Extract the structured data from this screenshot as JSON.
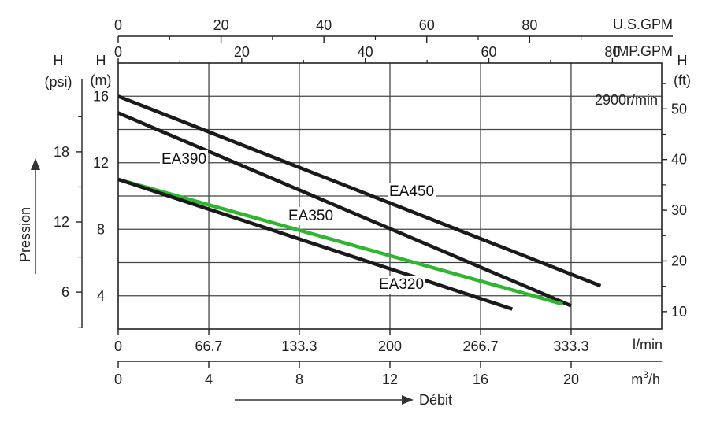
{
  "chart_data": {
    "type": "line",
    "title": "",
    "speed_label": "2900r/min",
    "x_axes": {
      "usgpm": {
        "label": "U.S.GPM",
        "ticks": [
          "0",
          "20",
          "40",
          "60",
          "80"
        ],
        "values": [
          0,
          20,
          40,
          60,
          80
        ]
      },
      "impgpm": {
        "label": "IMP.GPM",
        "ticks": [
          "0",
          "20",
          "40",
          "60",
          "80"
        ],
        "values": [
          0,
          20,
          40,
          60,
          80
        ]
      },
      "lmin": {
        "label": "l/min",
        "ticks": [
          "0",
          "66.7",
          "133.3",
          "200",
          "266.7",
          "333.3"
        ],
        "values": [
          0,
          66.7,
          133.3,
          200,
          266.7,
          333.3
        ],
        "range": [
          0,
          400
        ]
      },
      "m3h": {
        "label_base": "m",
        "label_sup": "3",
        "label_tail": "/h",
        "ticks": [
          "0",
          "4",
          "8",
          "12",
          "16",
          "20"
        ],
        "values": [
          0,
          4,
          8,
          12,
          16,
          20
        ]
      }
    },
    "y_axes": {
      "psi": {
        "label1": "H",
        "label2": "(psi)",
        "ticks": [
          "6",
          "12",
          "18"
        ],
        "values": [
          6,
          12,
          18
        ]
      },
      "m": {
        "label1": "H",
        "label2": "(m)",
        "ticks": [
          "4",
          "8",
          "12",
          "16"
        ],
        "values": [
          4,
          8,
          12,
          16
        ],
        "range": [
          2,
          18
        ]
      },
      "ft": {
        "label1": "H",
        "label2": "(ft)",
        "ticks": [
          "10",
          "20",
          "30",
          "40",
          "50"
        ],
        "values": [
          10,
          20,
          30,
          40,
          50
        ]
      }
    },
    "pressure_label": "Pression",
    "flow_label": "Débit",
    "grid": true,
    "series": [
      {
        "name": "EA450",
        "color": "#1a1a1a",
        "x": [
          0,
          355
        ],
        "y": [
          16,
          4.6
        ]
      },
      {
        "name": "EA390",
        "color": "#1a1a1a",
        "x": [
          0,
          333.3
        ],
        "y": [
          15,
          3.4
        ]
      },
      {
        "name": "EA350",
        "color": "#2fb52f",
        "x": [
          0,
          327
        ],
        "y": [
          11,
          3.5
        ]
      },
      {
        "name": "EA320",
        "color": "#1a1a1a",
        "x": [
          0,
          290
        ],
        "y": [
          11,
          3.2
        ]
      }
    ]
  }
}
